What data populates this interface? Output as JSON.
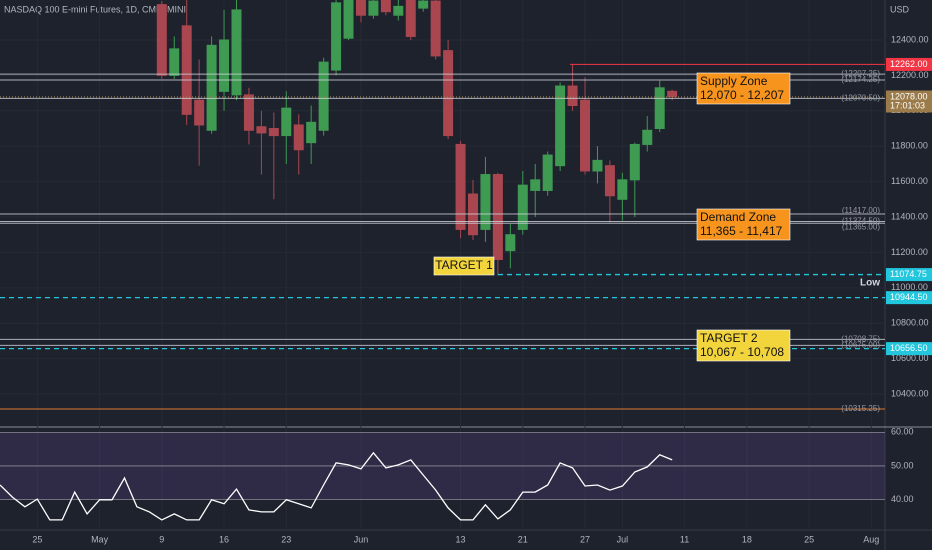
{
  "chart_data": [
    {
      "type": "candlestick",
      "title": "NASDAQ 100 E-mini Futures, 1D, CME_MINI",
      "currency": "USD",
      "up_color": "#3f9a52",
      "down_color": "#a9464f",
      "open": [
        12600,
        12200,
        12480,
        12060,
        11890,
        12110,
        12090,
        12090,
        11910,
        11900,
        11860,
        11920,
        11820,
        11890,
        12230,
        12410,
        12640,
        12540,
        12640,
        12540,
        12626,
        12580,
        12620,
        12340,
        11810,
        11530,
        11330,
        11640,
        11210,
        11330,
        11550,
        11550,
        11690,
        12140,
        12060,
        11660,
        11690,
        11500,
        11610,
        11810,
        11900,
        12110
      ],
      "high": [
        12620,
        12420,
        12626,
        12290,
        12420,
        12570,
        12626,
        12130,
        12000,
        11990,
        12110,
        11980,
        12030,
        12300,
        12626,
        12700,
        12700,
        12626,
        12700,
        12626,
        12626,
        12626,
        12626,
        12400,
        11830,
        11610,
        11740,
        11650,
        11360,
        11660,
        11700,
        11770,
        12160,
        12262,
        12190,
        11800,
        11720,
        11650,
        11820,
        11970,
        12170,
        12120
      ],
      "low": [
        12180,
        12180,
        11920,
        11690,
        11870,
        12000,
        12060,
        11810,
        11640,
        11500,
        11700,
        11640,
        11700,
        11860,
        12200,
        12400,
        12500,
        12520,
        12540,
        12510,
        12400,
        12560,
        12290,
        11840,
        11280,
        11270,
        11260,
        11070,
        11110,
        11300,
        11400,
        11520,
        11660,
        12000,
        11640,
        11590,
        11370,
        11380,
        11400,
        11770,
        11880,
        12060
      ],
      "close": [
        12200,
        12350,
        11980,
        11920,
        12370,
        12400,
        12570,
        11890,
        11875,
        11860,
        12015,
        11780,
        11935,
        12275,
        12610,
        12650,
        12540,
        12620,
        12560,
        12590,
        12420,
        12620,
        12310,
        11860,
        11330,
        11300,
        11640,
        11160,
        11300,
        11580,
        11610,
        11750,
        12140,
        12030,
        11660,
        11720,
        11520,
        11610,
        11810,
        11890,
        12130,
        12080
      ],
      "xlim": [
        -13,
        58.1
      ],
      "xticks": [
        {
          "value": -10,
          "label": "25"
        },
        {
          "value": -5,
          "label": "May"
        },
        {
          "value": 0,
          "label": "9"
        },
        {
          "value": 5,
          "label": "16"
        },
        {
          "value": 10,
          "label": "23"
        },
        {
          "value": 16,
          "label": "Jun"
        },
        {
          "value": 24,
          "label": "13"
        },
        {
          "value": 29,
          "label": "21"
        },
        {
          "value": 34,
          "label": "27"
        },
        {
          "value": 37,
          "label": "Jul"
        },
        {
          "value": 42,
          "label": "11"
        },
        {
          "value": 47,
          "label": "18"
        },
        {
          "value": 52,
          "label": "25"
        },
        {
          "value": 57,
          "label": "Aug"
        }
      ],
      "ylim": [
        10225,
        12626
      ],
      "yticks": [
        {
          "value": 12400,
          "label": "12400.00"
        },
        {
          "value": 12200,
          "label": "12200.00"
        },
        {
          "value": 12000,
          "label": "12000.00"
        },
        {
          "value": 11800,
          "label": "11800.00"
        },
        {
          "value": 11600,
          "label": "11600.00"
        },
        {
          "value": 11400,
          "label": "11400.00"
        },
        {
          "value": 11200,
          "label": "11200.00"
        },
        {
          "value": 11000,
          "label": "11000.00"
        },
        {
          "value": 10800,
          "label": "10800.00"
        },
        {
          "value": 10600,
          "label": "10600.00"
        },
        {
          "value": 10400,
          "label": "10400.00"
        }
      ],
      "levels": [
        {
          "value": 12262,
          "label": "12262.00",
          "color": "#f23645",
          "style": "solid",
          "tag": true
        },
        {
          "value": 12207.25,
          "label": "(12207.25)",
          "color": "#d1d4dc",
          "style": "solid",
          "tag": false
        },
        {
          "value": 12174.25,
          "label": "(12174.25)",
          "color": "#d1d4dc",
          "style": "solid",
          "tag": false
        },
        {
          "value": 12078,
          "label": "12078.00",
          "countdown": "17:01:03",
          "color": "#9b7b4a",
          "style": "dotted",
          "tag": true
        },
        {
          "value": 12070.5,
          "label": "(12070.50)",
          "color": "#d1d4dc",
          "style": "solid",
          "tag": false
        },
        {
          "value": 11417,
          "label": "(11417.00)",
          "color": "#d1d4dc",
          "style": "solid",
          "tag": false
        },
        {
          "value": 11374.5,
          "label": "(11374.50)",
          "color": "#d1d4dc",
          "style": "solid",
          "tag": false
        },
        {
          "value": 11365,
          "label": "(11365.00)",
          "color": "#d1d4dc",
          "style": "solid",
          "tag": false
        },
        {
          "value": 11074.75,
          "label": "11074.75",
          "color": "#22c6dd",
          "style": "dashed",
          "tag": true
        },
        {
          "value": 10944.5,
          "label": "10944.50",
          "color": "#22c6dd",
          "style": "dashed",
          "tag": true
        },
        {
          "value": 10708.75,
          "label": "(10708.75)",
          "color": "#d1d4dc",
          "style": "solid",
          "tag": false
        },
        {
          "value": 10675,
          "label": "(10675.00)",
          "color": "#d1d4dc",
          "style": "solid",
          "tag": false
        },
        {
          "value": 10656.5,
          "label": "10656.50",
          "color": "#22c6dd",
          "style": "dashed",
          "tag": true
        },
        {
          "value": 10315.25,
          "label": "(10315.25)",
          "color": "#e07a2f",
          "style": "solid",
          "tag": false
        }
      ],
      "annotations": [
        {
          "title": "Supply Zone",
          "range": "12,070 - 12,207",
          "color": "#f7941d"
        },
        {
          "title": "Demand Zone",
          "range": "11,365 - 11,417",
          "color": "#f7941d"
        },
        {
          "title": "TARGET 1",
          "color": "#f2d43d"
        },
        {
          "title": "TARGET 2",
          "range": "10,067 - 10,708",
          "color": "#f2d43d"
        },
        {
          "title": "Low"
        }
      ]
    },
    {
      "type": "line",
      "color": "#ffffff",
      "x": [
        -13,
        -12,
        -11,
        -10,
        -9,
        -8,
        -7,
        -6,
        -5,
        -4,
        -3,
        -2,
        -1,
        0,
        1,
        2,
        3,
        4,
        5,
        6,
        7,
        8,
        9,
        10,
        11,
        12,
        13,
        14,
        15,
        16,
        17,
        18,
        19,
        20,
        21,
        22,
        23,
        24,
        25,
        26,
        27,
        28,
        29,
        30,
        31,
        32,
        33,
        34,
        35,
        36,
        37,
        38,
        39,
        40,
        41
      ],
      "values": [
        44.3,
        40.7,
        37.8,
        40.1,
        33.9,
        33.9,
        42.2,
        35.7,
        39.9,
        39.9,
        46.4,
        37.8,
        36.3,
        33.9,
        35.7,
        33.9,
        33.9,
        39.9,
        38.7,
        43.1,
        36.9,
        36.3,
        36.3,
        39.9,
        38.7,
        37.5,
        44.3,
        50.9,
        50.3,
        49.1,
        53.9,
        49.4,
        50.3,
        51.8,
        47.3,
        42.8,
        37.5,
        33.9,
        33.9,
        38.4,
        34.2,
        36.9,
        42.2,
        42.2,
        44.3,
        50.9,
        49.4,
        44.0,
        44.3,
        42.8,
        44.0,
        48.2,
        49.7,
        53.3,
        51.8
      ],
      "ylim": [
        30.9,
        61.3
      ],
      "yticks": [
        {
          "value": 60,
          "label": "60.00"
        },
        {
          "value": 50,
          "label": "50.00"
        },
        {
          "value": 40,
          "label": "40.00"
        }
      ],
      "band": [
        40,
        60
      ]
    }
  ]
}
